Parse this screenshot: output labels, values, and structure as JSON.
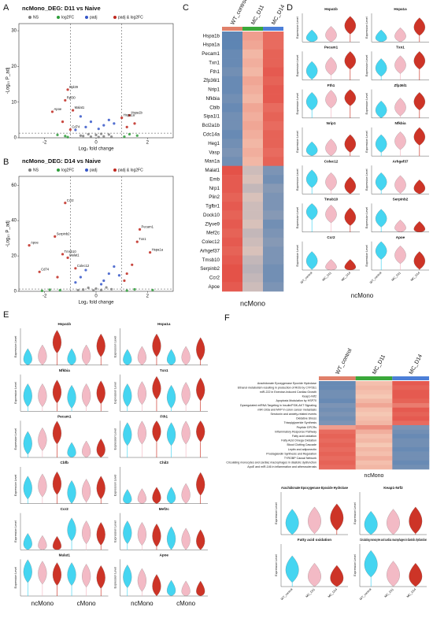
{
  "chart_data": [
    {
      "type": "volcano",
      "panel": "A",
      "title": "ncMono_DEG: D11 vs Naive",
      "xlabel": "Log₂ fold change",
      "ylabel": "-Log₁₀ P_adj",
      "xlim": [
        -3,
        3
      ],
      "ylim": [
        0,
        32
      ],
      "xticks": [
        -2,
        0,
        2
      ],
      "yticks": [
        0,
        10,
        20,
        30
      ],
      "vlines": [
        -1,
        1
      ],
      "hline": 1.3,
      "series": [
        {
          "name": "NS",
          "color": "#7f7f7f",
          "x": [
            -0.5,
            -0.3,
            -0.2,
            0,
            0.1,
            0.2,
            0.3,
            0.5,
            0.6,
            -0.6
          ],
          "values": [
            0.5,
            1,
            0.3,
            0.8,
            0.2,
            1.1,
            0.4,
            0.9,
            0.3,
            0.6
          ]
        },
        {
          "name": "log2FC",
          "color": "#2e9e3a",
          "x": [
            -1.2,
            -1.5,
            1.1,
            1.3,
            -1.1,
            1.6
          ],
          "values": [
            0.5,
            0.8,
            0.3,
            1.0,
            0.2,
            0.6
          ]
        },
        {
          "name": "padj",
          "color": "#3556c8",
          "x": [
            -0.4,
            -0.2,
            0.3,
            0.5,
            0.1,
            -0.6,
            0.7,
            -0.8
          ],
          "values": [
            3,
            4.5,
            3.5,
            5,
            2.5,
            6,
            4,
            2.2
          ]
        },
        {
          "name": "padj & log2FC",
          "color": "#c0281f",
          "x": [
            -1.1,
            -1.2,
            -1.7,
            -0.9,
            1.3,
            1.0,
            -1.0,
            1.2,
            1.5,
            -1.3
          ],
          "values": [
            13.5,
            10.5,
            7.3,
            7.7,
            6.3,
            5.6,
            2.3,
            3,
            4,
            4.5
          ],
          "labels": [
            "Rpl29",
            "Rpl30",
            "Apoe",
            "Malat1",
            "Hspa1b",
            "Hspa1a",
            "Cd74",
            null,
            null,
            null
          ]
        }
      ]
    },
    {
      "type": "volcano",
      "panel": "B",
      "title": "ncMono_DEG: D14 vs Naive",
      "xlabel": "Log₂ fold change",
      "ylabel": "-Log₁₀ P_adj",
      "xlim": [
        -3,
        3
      ],
      "ylim": [
        0,
        65
      ],
      "xticks": [
        -2,
        0,
        2
      ],
      "yticks": [
        0,
        20,
        40,
        60
      ],
      "vlines": [
        -1,
        1
      ],
      "hline": 1.3,
      "series": [
        {
          "name": "NS",
          "color": "#7f7f7f",
          "x": [
            -0.5,
            -0.3,
            -0.1,
            0,
            0.2,
            0.4,
            0.6,
            -0.7
          ],
          "values": [
            1,
            2,
            0.5,
            1.5,
            0.8,
            2.2,
            1.2,
            0.6
          ]
        },
        {
          "name": "log2FC",
          "color": "#2e9e3a",
          "x": [
            -1.4,
            -1.8,
            1.2,
            1.5,
            -2.1,
            2.2
          ],
          "values": [
            0.6,
            0.9,
            0.4,
            1.1,
            0.3,
            0.7
          ]
        },
        {
          "name": "padj",
          "color": "#3556c8",
          "x": [
            -0.6,
            -0.4,
            0.3,
            0.5,
            0.7,
            -0.8,
            0.9,
            0.2
          ],
          "values": [
            8,
            12,
            6,
            10,
            14,
            5,
            9,
            4
          ]
        },
        {
          "name": "padj & log2FC",
          "color": "#c0281f",
          "x": [
            -1.2,
            -1.6,
            -2.6,
            -1.3,
            -1.1,
            1.7,
            1.6,
            2.1,
            -2.2,
            -0.8,
            1.2,
            1.4,
            -1.5,
            1.1
          ],
          "values": [
            50,
            31,
            26,
            21,
            19,
            35,
            28,
            22,
            11,
            13,
            10,
            15,
            8,
            6
          ],
          "labels": [
            "Ccr2",
            "Serpinb2",
            "Apoe",
            "Tmsb10",
            "Malat1",
            "Pecam1",
            "Txn1",
            "Hspa1a",
            "Cd74",
            "Colec12",
            null,
            null,
            null,
            null
          ]
        }
      ]
    },
    {
      "type": "heatmap",
      "panel": "C",
      "caption": "ncMono",
      "clim": [
        -2,
        2
      ],
      "columns": [
        "WT_control",
        "MC_D11",
        "MC_D14"
      ],
      "column_colors": [
        "#e0806a",
        "#3aa83a",
        "#4c7fd8"
      ],
      "rows": [
        "Hspa1b",
        "Hspa1a",
        "Pecam1",
        "Txn1",
        "Fth1",
        "Zfp36l1",
        "Nrip1",
        "Nfkbia",
        "Cblb",
        "Sipa1l1",
        "Bcl2a1b",
        "Cdc14a",
        "Heg1",
        "Vasp",
        "Man1a",
        "Malat1",
        "Emb",
        "Nrp1",
        "Plin2",
        "Tgfbr1",
        "Dock10",
        "Zfyve9",
        "Mef2c",
        "Colec12",
        "Arhgef37",
        "Tmsb10",
        "Serpinb2",
        "Ccr2",
        "Apoe"
      ],
      "values": [
        [
          -1.5,
          0.6,
          1.2
        ],
        [
          -1.5,
          0.5,
          1.2
        ],
        [
          -1.4,
          0.3,
          1.3
        ],
        [
          -1.4,
          0.4,
          1.3
        ],
        [
          -1.3,
          0.3,
          1.4
        ],
        [
          -1.4,
          0.5,
          1.3
        ],
        [
          -1.4,
          0.4,
          1.4
        ],
        [
          -1.3,
          0.3,
          1.4
        ],
        [
          -1.4,
          0.5,
          1.2
        ],
        [
          -1.3,
          0.4,
          1.3
        ],
        [
          -1.3,
          0.5,
          1.2
        ],
        [
          -1.4,
          0.4,
          1.3
        ],
        [
          -1.3,
          0.3,
          1.3
        ],
        [
          -1.2,
          0.4,
          1.2
        ],
        [
          -1.3,
          0.3,
          1.3
        ],
        [
          1.5,
          -0.4,
          -1.2
        ],
        [
          1.4,
          -0.3,
          -1.3
        ],
        [
          1.4,
          -0.5,
          -1.1
        ],
        [
          1.3,
          -0.3,
          -1.2
        ],
        [
          1.4,
          -0.4,
          -1.2
        ],
        [
          1.3,
          -0.4,
          -1.1
        ],
        [
          1.4,
          -0.3,
          -1.3
        ],
        [
          1.3,
          -0.5,
          -1.2
        ],
        [
          1.4,
          -0.4,
          -1.1
        ],
        [
          1.3,
          -0.3,
          -1.2
        ],
        [
          1.4,
          -0.5,
          -1.2
        ],
        [
          1.5,
          -0.6,
          -1.3
        ],
        [
          1.5,
          -0.5,
          -1.3
        ],
        [
          1.4,
          -0.4,
          -1.2
        ]
      ]
    },
    {
      "type": "violin",
      "panel": "D",
      "ylabel": "Expression Level",
      "caption": "ncMono",
      "ylim": [
        0,
        4
      ],
      "groups": [
        "WT_control",
        "MC_D11",
        "MC_D14"
      ],
      "colors": [
        "#31d0ef",
        "#f2b3bf",
        "#c81e10"
      ],
      "genes": [
        {
          "name": "Hspa1b",
          "values": [
            0.3,
            0.8,
            2.2
          ]
        },
        {
          "name": "Hspa1a",
          "values": [
            0.3,
            0.6,
            2.0
          ]
        },
        {
          "name": "Pecam1",
          "values": [
            1.2,
            1.8,
            2.6
          ]
        },
        {
          "name": "Txn1",
          "values": [
            1.6,
            2.0,
            2.6
          ]
        },
        {
          "name": "Fth1",
          "values": [
            2.2,
            2.5,
            2.8
          ]
        },
        {
          "name": "Zfp36l1",
          "values": [
            1.0,
            1.4,
            2.2
          ]
        },
        {
          "name": "Nrip1",
          "values": [
            0.6,
            1.0,
            1.6
          ]
        },
        {
          "name": "Nfkbia",
          "values": [
            1.6,
            2.0,
            2.6
          ]
        },
        {
          "name": "Colec12",
          "values": [
            2.0,
            1.6,
            1.0
          ]
        },
        {
          "name": "Arhgef37",
          "values": [
            1.6,
            1.2,
            0.6
          ]
        },
        {
          "name": "Tmsb10",
          "values": [
            2.8,
            2.4,
            2.0
          ]
        },
        {
          "name": "Serpinb2",
          "values": [
            1.8,
            0.3,
            0.1
          ]
        },
        {
          "name": "Ccr2",
          "values": [
            1.2,
            0.1,
            0.1
          ]
        },
        {
          "name": "Apoe",
          "values": [
            2.6,
            2.0,
            1.2
          ]
        }
      ]
    },
    {
      "type": "violin",
      "panel": "E",
      "ylabel": "Expression Level",
      "ylim": [
        0,
        5
      ],
      "group_labels": [
        "ncMono",
        "cMono"
      ],
      "colors": [
        "#31d0ef",
        "#f2b3bf",
        "#c81e10",
        "#31d0ef",
        "#f2b3bf",
        "#c81e10"
      ],
      "genes": [
        {
          "name": "Hspa1b",
          "values": [
            0.5,
            1,
            3,
            0.5,
            1,
            2.5
          ]
        },
        {
          "name": "Hspa1a",
          "values": [
            0.4,
            0.8,
            2.5,
            0.4,
            0.8,
            2
          ]
        },
        {
          "name": "Nfkbia",
          "values": [
            2,
            2,
            2.5,
            1.8,
            2,
            2.4
          ]
        },
        {
          "name": "Txn1",
          "values": [
            2,
            2.3,
            3,
            1.8,
            2.2,
            2.8
          ]
        },
        {
          "name": "Pecam1",
          "values": [
            1.8,
            2.3,
            3.2,
            0.3,
            0.5,
            0.8
          ]
        },
        {
          "name": "Fth1",
          "values": [
            3,
            3.2,
            3.5,
            3,
            3.2,
            3.5
          ]
        },
        {
          "name": "Cbfb",
          "values": [
            2,
            2.3,
            2.6,
            1.4,
            1.6,
            2
          ]
        },
        {
          "name": "Chil3",
          "values": [
            0.2,
            0.3,
            0.5,
            0.5,
            1,
            2.5
          ]
        },
        {
          "name": "Ccr2",
          "values": [
            0.5,
            0.2,
            0.1,
            2.6,
            2.2,
            2
          ]
        },
        {
          "name": "Mef2c",
          "values": [
            2.2,
            2,
            1.8,
            1.4,
            1.2,
            1
          ]
        },
        {
          "name": "Malat1",
          "values": [
            3.2,
            3,
            2.8,
            2.8,
            2.6,
            2.4
          ]
        },
        {
          "name": "Apoe",
          "values": [
            2.5,
            2,
            1.2,
            0.4,
            0.3,
            0.3
          ]
        }
      ]
    },
    {
      "type": "heatmap",
      "panel": "F",
      "caption": "ncMono",
      "clim": [
        -2,
        2
      ],
      "columns": [
        "WT_control",
        "MC_D11",
        "MC_D14"
      ],
      "column_colors": [
        "#e0806a",
        "#3aa83a",
        "#4c7fd8"
      ],
      "rows": [
        "Arachidonate Epoxygenase  Epoxide Hydrolase",
        "Ethanol metabolism resulting in production of ROS by CYP2E1",
        "miR-222 in Exercise-Induced Cardiac Growth",
        "Keap1-Nrf2",
        "Apoptosis Modulation by HSP70",
        "Dysregulated miRNA Targeting in Insulin/PI3K-AKT Signaling",
        "miR-193a and MVP in colon cancer metastasis",
        "Serotonin and anxiety-related events",
        "Oxidative Stress",
        "Triacylglyceride Synthesis",
        "Peptide GPCRs",
        "Inflammatory Response Pathway",
        "Fatty acid oxidation",
        "Fatty Acid Omega Oxidation",
        "Blood Clotting Cascade",
        "Leptin and adiponectin",
        "Prostaglandin Synthesis and Regulation",
        "TYROBP Causal Network",
        "Circulating monocytes and cardiac macrophages in diastolic dysfunction",
        "ApoE and miR-146 in inflammation and atherosclerosis"
      ],
      "values": [
        [
          -1.4,
          0.2,
          1.4
        ],
        [
          -1.4,
          0.3,
          1.3
        ],
        [
          -1.3,
          0.2,
          1.4
        ],
        [
          -1.3,
          0.1,
          1.4
        ],
        [
          -1.4,
          0.3,
          1.3
        ],
        [
          -1.2,
          0.5,
          1.0
        ],
        [
          -1.3,
          0.2,
          1.4
        ],
        [
          -1.2,
          0.1,
          1.3
        ],
        [
          -1.3,
          0.2,
          1.4
        ],
        [
          -1.2,
          0.3,
          1.2
        ],
        [
          0.6,
          0.8,
          -1.2
        ],
        [
          1.2,
          0.4,
          -1.3
        ],
        [
          1.3,
          0.2,
          -1.4
        ],
        [
          1.2,
          0.3,
          -1.3
        ],
        [
          1.3,
          0.1,
          -1.3
        ],
        [
          1.2,
          0.3,
          -1.4
        ],
        [
          1.3,
          0.2,
          -1.3
        ],
        [
          1.2,
          0.4,
          -1.3
        ],
        [
          1.3,
          0.2,
          -1.4
        ],
        [
          1.2,
          0.3,
          -1.3
        ]
      ]
    },
    {
      "type": "violin",
      "ylabel": "Expression Level",
      "ylim": [
        0,
        0.4
      ],
      "groups": [
        "WT_control",
        "MC_D11",
        "MC_D14"
      ],
      "colors": [
        "#31d0ef",
        "#f2b3bf",
        "#c81e10"
      ],
      "genes": [
        {
          "name": "Arachidonate Epoxygenase  Epoxide Hydrolase",
          "values": [
            0.1,
            0.12,
            0.15
          ]
        },
        {
          "name": "Keap1-Nrf2",
          "values": [
            0.08,
            0.1,
            0.12
          ]
        },
        {
          "name": "Fatty acid oxidation",
          "values": [
            0.15,
            0.08,
            0.06
          ]
        },
        {
          "name": "Circulating monocytes and cardiac macrophages in diastolic dysfunction",
          "values": [
            0.2,
            0.1,
            0.08
          ]
        }
      ]
    }
  ]
}
